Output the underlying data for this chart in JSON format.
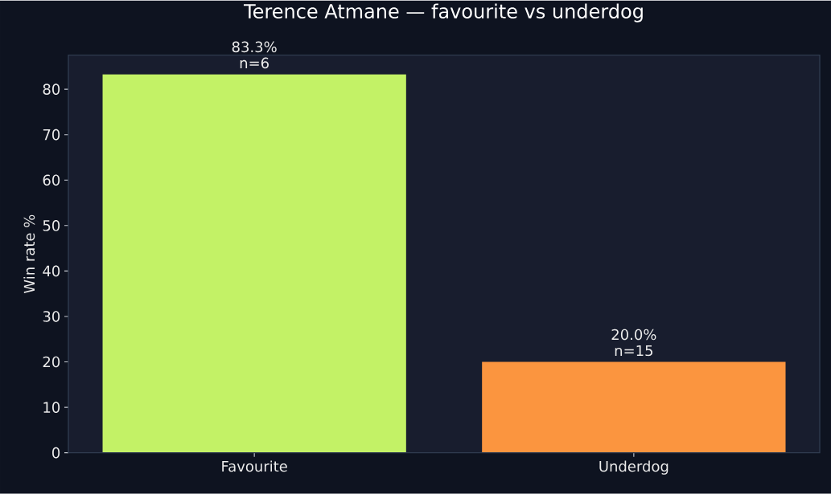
{
  "chart_data": {
    "type": "bar",
    "title": "Terence Atmane — favourite vs underdog",
    "ylabel": "Win rate %",
    "categories": [
      "Favourite",
      "Underdog"
    ],
    "values": [
      83.3,
      20.0
    ],
    "colors": [
      "#c3f266",
      "#fb953f"
    ],
    "value_labels": [
      "83.3%\nn=6",
      "20.0%\nn=15"
    ],
    "ylim": [
      0,
      87.5
    ],
    "yticks": [
      0,
      10,
      20,
      30,
      40,
      50,
      60,
      70,
      80
    ]
  }
}
